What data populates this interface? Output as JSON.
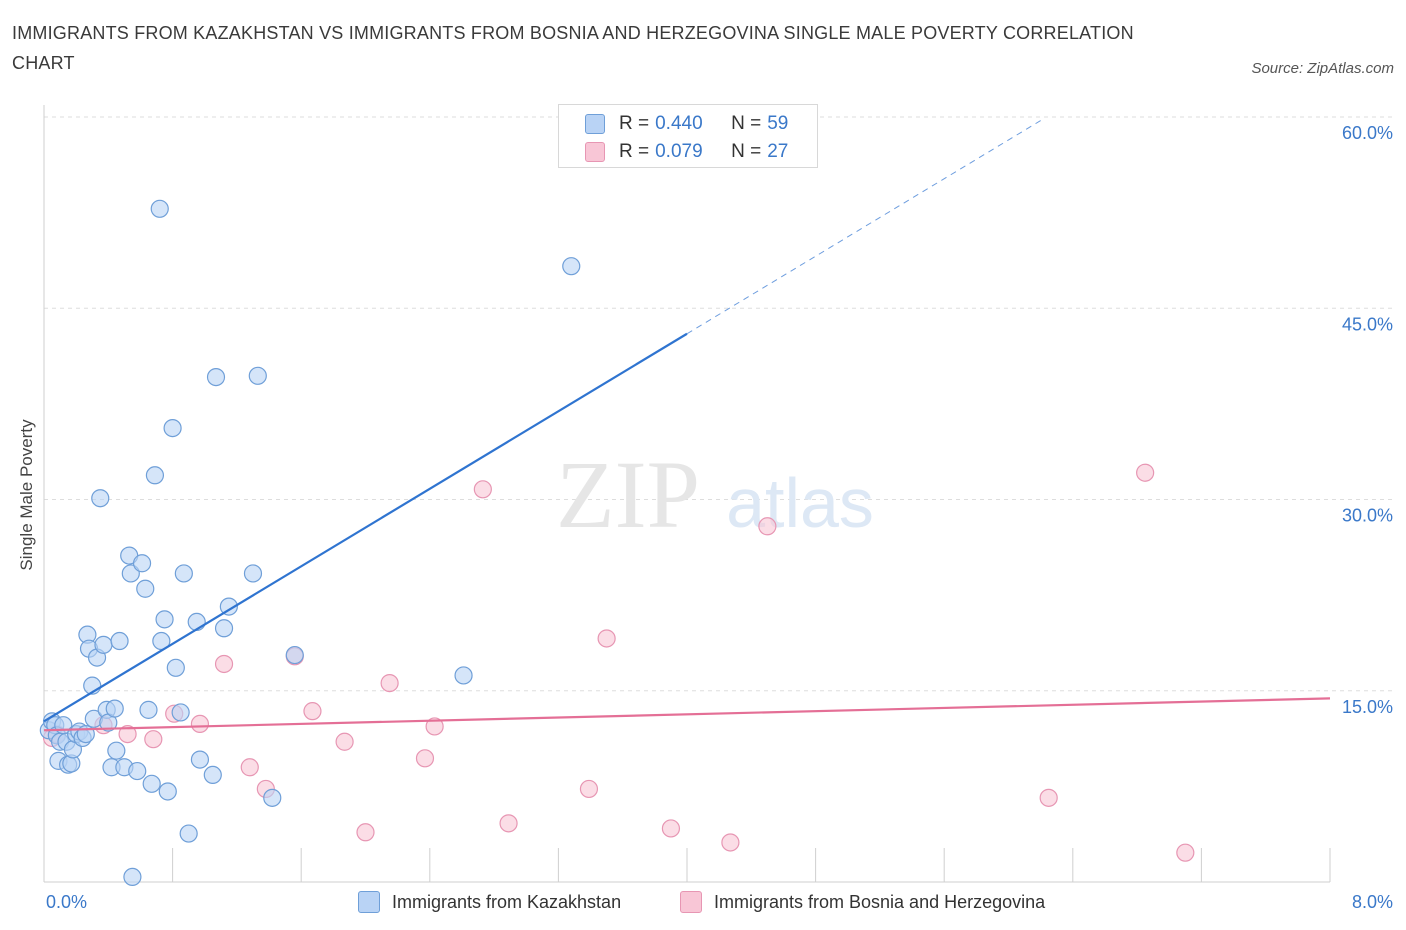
{
  "header": {
    "title": "IMMIGRANTS FROM KAZAKHSTAN VS IMMIGRANTS FROM BOSNIA AND HERZEGOVINA SINGLE MALE POVERTY CORRELATION CHART",
    "source": "Source: ZipAtlas.com"
  },
  "watermark": {
    "zip": "ZIP",
    "atlas": "atlas"
  },
  "legend": {
    "r_label": "R =",
    "n_label": "N =",
    "series1": {
      "r": "0.440",
      "n": "59"
    },
    "series2": {
      "r": "0.079",
      "n": "27"
    }
  },
  "colors": {
    "series1_fill": "#b9d3f5",
    "series1_stroke": "#6f9fd8",
    "series1_line": "#2f74d0",
    "series2_fill": "#f8c6d6",
    "series2_stroke": "#e796b3",
    "series2_line": "#e46f96",
    "axis_text": "#3a78c9",
    "grid": "#dddddd"
  },
  "chart_data": {
    "type": "scatter",
    "title": "IMMIGRANTS FROM KAZAKHSTAN VS IMMIGRANTS FROM BOSNIA AND HERZEGOVINA SINGLE MALE POVERTY CORRELATION CHART",
    "xlabel": "",
    "ylabel": "Single Male Poverty",
    "xlim": [
      0,
      8
    ],
    "ylim": [
      0,
      60
    ],
    "x_tick_labels": [
      "0.0%",
      "8.0%"
    ],
    "y_ticks": [
      15,
      30,
      45,
      60
    ],
    "y_tick_labels": [
      "15.0%",
      "30.0%",
      "45.0%",
      "60.0%"
    ],
    "grid": true,
    "legend_position": "top-center",
    "series": [
      {
        "name": "Immigrants from Kazakhstan",
        "trend": {
          "x0": 0.0,
          "y0": 12.6,
          "x1": 4.0,
          "y1": 43.0,
          "dashed_to_x": 6.2
        },
        "points": [
          [
            0.03,
            11.9
          ],
          [
            0.05,
            12.6
          ],
          [
            0.07,
            12.3
          ],
          [
            0.08,
            11.5
          ],
          [
            0.09,
            9.5
          ],
          [
            0.1,
            11.0
          ],
          [
            0.12,
            12.3
          ],
          [
            0.14,
            11.0
          ],
          [
            0.15,
            9.2
          ],
          [
            0.17,
            9.3
          ],
          [
            0.18,
            10.4
          ],
          [
            0.2,
            11.6
          ],
          [
            0.22,
            11.8
          ],
          [
            0.24,
            11.3
          ],
          [
            0.26,
            11.6
          ],
          [
            0.27,
            19.4
          ],
          [
            0.28,
            18.3
          ],
          [
            0.3,
            15.4
          ],
          [
            0.31,
            12.8
          ],
          [
            0.33,
            17.6
          ],
          [
            0.35,
            30.1
          ],
          [
            0.37,
            18.6
          ],
          [
            0.39,
            13.5
          ],
          [
            0.4,
            12.5
          ],
          [
            0.42,
            9.0
          ],
          [
            0.44,
            13.6
          ],
          [
            0.45,
            10.3
          ],
          [
            0.47,
            18.9
          ],
          [
            0.5,
            9.0
          ],
          [
            0.53,
            25.6
          ],
          [
            0.54,
            24.2
          ],
          [
            0.55,
            0.4
          ],
          [
            0.58,
            8.7
          ],
          [
            0.61,
            25.0
          ],
          [
            0.63,
            23.0
          ],
          [
            0.65,
            13.5
          ],
          [
            0.67,
            7.7
          ],
          [
            0.69,
            31.9
          ],
          [
            0.72,
            52.8
          ],
          [
            0.73,
            18.9
          ],
          [
            0.75,
            20.6
          ],
          [
            0.77,
            7.1
          ],
          [
            0.8,
            35.6
          ],
          [
            0.82,
            16.8
          ],
          [
            0.85,
            13.3
          ],
          [
            0.87,
            24.2
          ],
          [
            0.9,
            3.8
          ],
          [
            0.95,
            20.4
          ],
          [
            0.97,
            9.6
          ],
          [
            1.05,
            8.4
          ],
          [
            1.07,
            39.6
          ],
          [
            1.12,
            19.9
          ],
          [
            1.15,
            21.6
          ],
          [
            1.3,
            24.2
          ],
          [
            1.33,
            39.7
          ],
          [
            1.42,
            6.6
          ],
          [
            1.56,
            17.8
          ],
          [
            2.61,
            16.2
          ],
          [
            3.28,
            48.3
          ]
        ]
      },
      {
        "name": "Immigrants from Bosnia and Herzegovina",
        "trend": {
          "x0": 0.0,
          "y0": 11.9,
          "x1": 8.0,
          "y1": 14.4
        },
        "points": [
          [
            0.05,
            11.3
          ],
          [
            0.08,
            11.6
          ],
          [
            0.37,
            12.3
          ],
          [
            0.52,
            11.6
          ],
          [
            0.68,
            11.2
          ],
          [
            0.81,
            13.2
          ],
          [
            0.97,
            12.4
          ],
          [
            1.12,
            17.1
          ],
          [
            1.28,
            9.0
          ],
          [
            1.38,
            7.3
          ],
          [
            1.56,
            17.7
          ],
          [
            1.67,
            13.4
          ],
          [
            1.87,
            11.0
          ],
          [
            2.0,
            3.9
          ],
          [
            2.15,
            15.6
          ],
          [
            2.37,
            9.7
          ],
          [
            2.43,
            12.2
          ],
          [
            2.73,
            30.8
          ],
          [
            2.89,
            4.6
          ],
          [
            3.39,
            7.3
          ],
          [
            3.5,
            19.1
          ],
          [
            3.9,
            4.2
          ],
          [
            4.27,
            3.1
          ],
          [
            4.5,
            27.9
          ],
          [
            6.25,
            6.6
          ],
          [
            6.85,
            32.1
          ],
          [
            7.1,
            2.3
          ]
        ]
      }
    ]
  }
}
